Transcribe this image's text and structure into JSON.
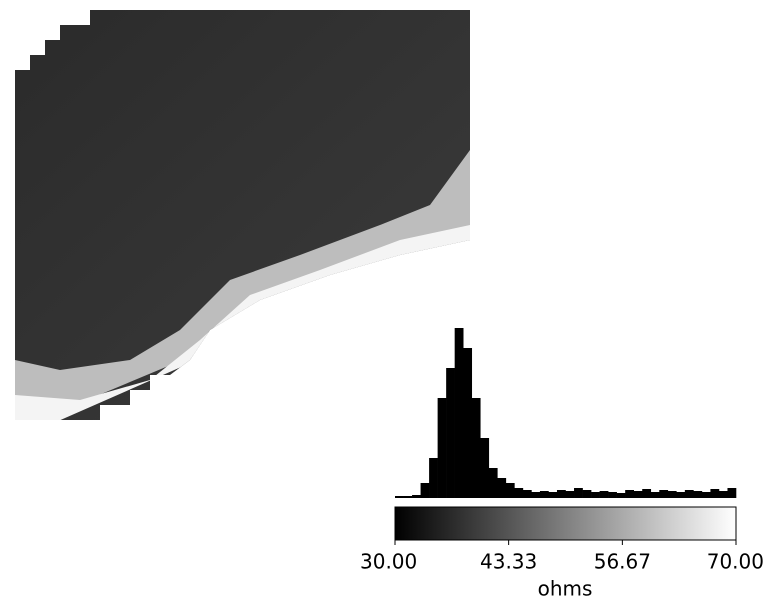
{
  "chart_data": {
    "type": "histogram",
    "bins": [
      30,
      31,
      32,
      33,
      34,
      35,
      36,
      37,
      38,
      39,
      40,
      41,
      42,
      43,
      44,
      45,
      46,
      47,
      48,
      49,
      50,
      51,
      52,
      53,
      54,
      55,
      56,
      57,
      58,
      59,
      60,
      61,
      62,
      63,
      64,
      65,
      66,
      67,
      68,
      69,
      70
    ],
    "values": [
      2,
      2,
      3,
      15,
      40,
      100,
      130,
      170,
      150,
      100,
      60,
      30,
      20,
      15,
      10,
      8,
      6,
      7,
      6,
      8,
      7,
      10,
      8,
      6,
      7,
      6,
      5,
      8,
      7,
      9,
      6,
      8,
      7,
      6,
      8,
      7,
      6,
      9,
      7,
      10
    ],
    "color": "#000000",
    "xlim": [
      30,
      70
    ],
    "xticks": [
      {
        "value": 30,
        "label": "30.00"
      },
      {
        "value": 43.33,
        "label": "43.33"
      },
      {
        "value": 56.67,
        "label": "56.67"
      },
      {
        "value": 70,
        "label": "70.00"
      }
    ],
    "xlabel": "ohms"
  }
}
